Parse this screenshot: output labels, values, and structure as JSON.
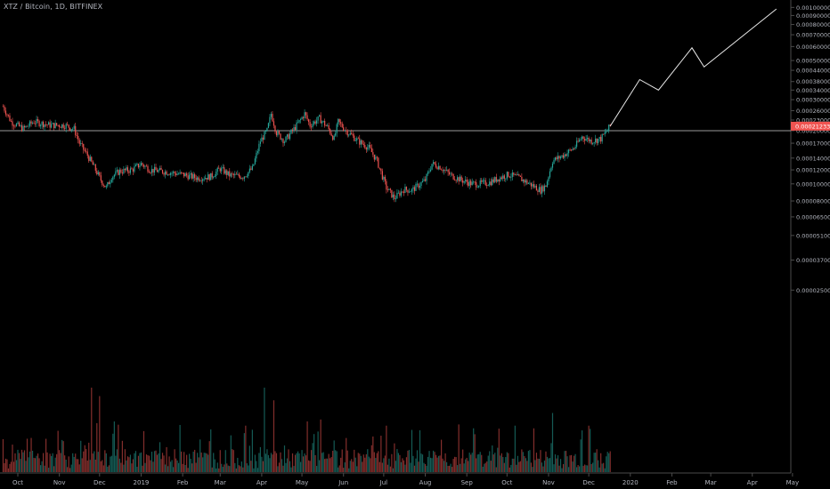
{
  "colors": {
    "background": "#000000",
    "up_candle": "#26a69a",
    "down_candle": "#ef5350",
    "up_volume": "#26a69a",
    "down_volume": "#ef5350",
    "axis_text": "#b2b5be",
    "axis_line": "#4a4a4a",
    "price_line": "#9a9a9a",
    "projection_line": "#e8e8e8",
    "price_label_bg": "#ef5350",
    "price_label_text": "#ffffff"
  },
  "chart_data": {
    "type": "candlestick",
    "title": "XTZ / Bitcoin, 1D, BITFINEX",
    "y_scale": "log",
    "ylim": [
      2e-05,
      0.00105
    ],
    "y_ticks": [
      "0.00100000",
      "0.00090000",
      "0.00080000",
      "0.00070000",
      "0.00060000",
      "0.00050000",
      "0.00044000",
      "0.00038000",
      "0.00034000",
      "0.00030000",
      "0.00026000",
      "0.00023000",
      "0.00020000",
      "0.00017000",
      "0.00014000",
      "0.00012000",
      "0.00010000",
      "0.00008000",
      "0.00006500",
      "0.00005100",
      "0.00003700",
      "0.00002500"
    ],
    "x_ticks": [
      "Oct",
      "Nov",
      "Dec",
      "2019",
      "Feb",
      "Mar",
      "Apr",
      "May",
      "Jun",
      "Jul",
      "Aug",
      "Sep",
      "Oct",
      "Nov",
      "Dec",
      "2020",
      "Feb",
      "Mar",
      "Apr",
      "May"
    ],
    "last_price": "0.00021233",
    "horizontal_line": 0.0002,
    "price_path": [
      [
        "2018-09-20",
        0.000275
      ],
      [
        "2018-09-26",
        0.000225
      ],
      [
        "2018-10-05",
        0.000205
      ],
      [
        "2018-10-13",
        0.000225
      ],
      [
        "2018-10-25",
        0.000215
      ],
      [
        "2018-11-05",
        0.000215
      ],
      [
        "2018-11-12",
        0.000205
      ],
      [
        "2018-11-16",
        0.00017
      ],
      [
        "2018-11-22",
        0.000145
      ],
      [
        "2018-11-28",
        0.00012
      ],
      [
        "2018-12-02",
        0.000105
      ],
      [
        "2018-12-06",
        9.5e-05
      ],
      [
        "2018-12-10",
        0.00011
      ],
      [
        "2018-12-16",
        0.000118
      ],
      [
        "2018-12-25",
        0.00012
      ],
      [
        "2019-01-01",
        0.00013
      ],
      [
        "2019-01-08",
        0.00012
      ],
      [
        "2019-01-20",
        0.000117
      ],
      [
        "2019-02-01",
        0.000113
      ],
      [
        "2019-02-12",
        0.000108
      ],
      [
        "2019-02-22",
        0.00011
      ],
      [
        "2019-03-01",
        0.000122
      ],
      [
        "2019-03-08",
        0.000112
      ],
      [
        "2019-03-18",
        0.00011
      ],
      [
        "2019-03-25",
        0.000122
      ],
      [
        "2019-03-31",
        0.000175
      ],
      [
        "2019-04-05",
        0.0002
      ],
      [
        "2019-04-08",
        0.00025
      ],
      [
        "2019-04-12",
        0.000195
      ],
      [
        "2019-04-18",
        0.000175
      ],
      [
        "2019-04-24",
        0.0002
      ],
      [
        "2019-04-29",
        0.000225
      ],
      [
        "2019-05-03",
        0.00025
      ],
      [
        "2019-05-07",
        0.000215
      ],
      [
        "2019-05-14",
        0.000235
      ],
      [
        "2019-05-20",
        0.00021
      ],
      [
        "2019-05-25",
        0.00018
      ],
      [
        "2019-05-28",
        0.000225
      ],
      [
        "2019-06-03",
        0.0002
      ],
      [
        "2019-06-12",
        0.000175
      ],
      [
        "2019-06-20",
        0.00016
      ],
      [
        "2019-06-26",
        0.000135
      ],
      [
        "2019-07-03",
        9.5e-05
      ],
      [
        "2019-07-09",
        8.3e-05
      ],
      [
        "2019-07-16",
        9.3e-05
      ],
      [
        "2019-07-22",
        9.2e-05
      ],
      [
        "2019-08-01",
        0.000105
      ],
      [
        "2019-08-06",
        0.00013
      ],
      [
        "2019-08-12",
        0.000125
      ],
      [
        "2019-08-20",
        0.000112
      ],
      [
        "2019-08-28",
        0.000105
      ],
      [
        "2019-09-05",
        0.0001
      ],
      [
        "2019-09-10",
        0.0001
      ],
      [
        "2019-09-18",
        0.000102
      ],
      [
        "2019-09-25",
        0.000108
      ],
      [
        "2019-10-02",
        0.000113
      ],
      [
        "2019-10-10",
        0.000108
      ],
      [
        "2019-10-20",
        9.8e-05
      ],
      [
        "2019-10-26",
        9.2e-05
      ],
      [
        "2019-10-30",
        9.8e-05
      ],
      [
        "2019-11-04",
        0.000135
      ],
      [
        "2019-11-12",
        0.000145
      ],
      [
        "2019-11-20",
        0.00016
      ],
      [
        "2019-11-26",
        0.000185
      ],
      [
        "2019-12-03",
        0.000175
      ],
      [
        "2019-12-10",
        0.00018
      ],
      [
        "2019-12-17",
        0.00021233
      ]
    ],
    "projection_path": [
      [
        "2019-12-17",
        0.00021233
      ],
      [
        "2020-01-08",
        0.00039
      ],
      [
        "2020-01-22",
        0.00034
      ],
      [
        "2020-02-16",
        0.00059
      ],
      [
        "2020-02-25",
        0.00046
      ],
      [
        "2020-04-19",
        0.00098
      ]
    ],
    "volume_spikes": [
      [
        "2018-11-25",
        1.0
      ],
      [
        "2018-12-01",
        0.9
      ],
      [
        "2019-03-20",
        0.55
      ],
      [
        "2019-04-03",
        1.0
      ],
      [
        "2019-04-10",
        0.85
      ],
      [
        "2019-05-05",
        0.6
      ],
      [
        "2019-07-03",
        0.55
      ],
      [
        "2019-11-04",
        0.7
      ],
      [
        "2019-12-01",
        0.55
      ]
    ]
  }
}
